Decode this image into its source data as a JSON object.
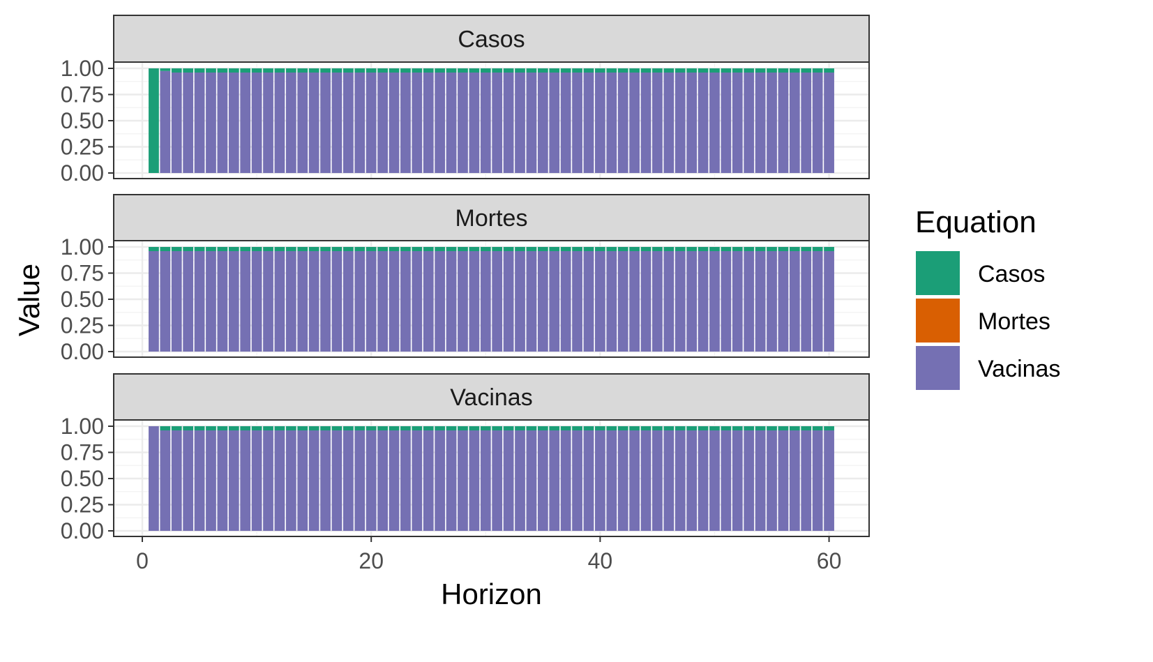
{
  "chart_data": {
    "type": "bar",
    "stacked": true,
    "facets": [
      {
        "title": "Casos",
        "horizon_1": {
          "Casos": 1.0,
          "Mortes": 0.0,
          "Vacinas": 0.0
        },
        "horizon_2": {
          "Casos": 0.025,
          "Mortes": 0.0,
          "Vacinas": 0.975
        },
        "horizon_3_to_60": {
          "Casos": 0.04,
          "Mortes": 0.0,
          "Vacinas": 0.96
        }
      },
      {
        "title": "Mortes",
        "horizon_1_to_60": {
          "Casos": 0.04,
          "Mortes": 0.0,
          "Vacinas": 0.96
        }
      },
      {
        "title": "Vacinas",
        "horizon_1": {
          "Casos": 0.0,
          "Mortes": 0.0,
          "Vacinas": 1.0
        },
        "horizon_2_to_60": {
          "Casos": 0.04,
          "Mortes": 0.0,
          "Vacinas": 0.96
        }
      }
    ],
    "x_range": [
      1,
      60
    ],
    "xlim": [
      -2.5,
      63.5
    ],
    "ylim": [
      0,
      1
    ],
    "x_ticks": [
      "0",
      "20",
      "40",
      "60"
    ],
    "x_tick_values": [
      0,
      20,
      40,
      60
    ],
    "y_ticks": [
      "0.00",
      "0.25",
      "0.50",
      "0.75",
      "1.00"
    ],
    "y_tick_values": [
      0,
      0.25,
      0.5,
      0.75,
      1.0
    ],
    "xlabel": "Horizon",
    "ylabel": "Value",
    "legend_title": "Equation",
    "legend_placement": "right",
    "legend": [
      {
        "name": "Casos",
        "color": "#1b9e77"
      },
      {
        "name": "Mortes",
        "color": "#d95f02"
      },
      {
        "name": "Vacinas",
        "color": "#7570b3"
      }
    ],
    "grid": true
  }
}
